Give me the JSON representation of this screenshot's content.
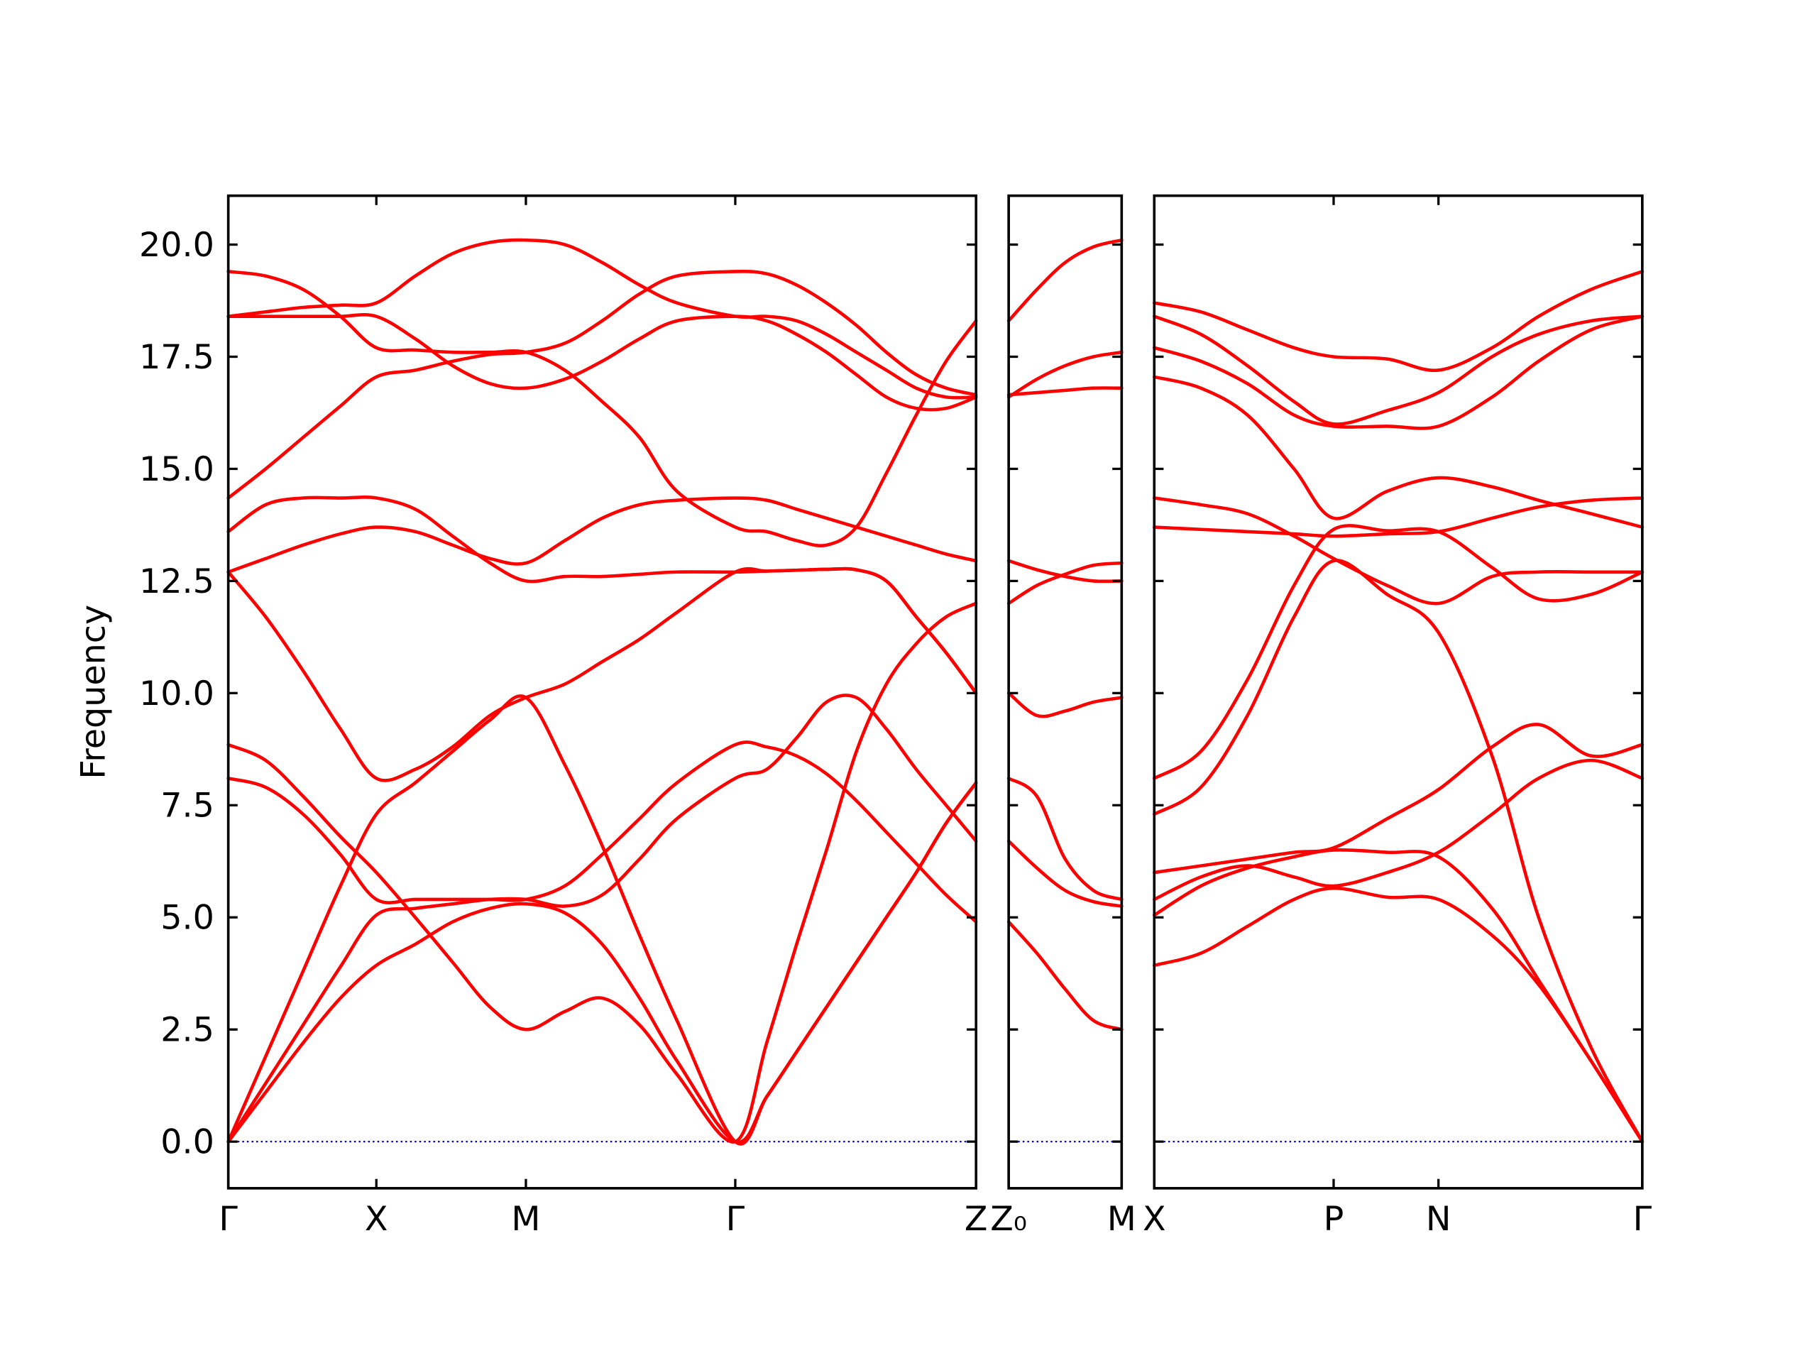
{
  "chart_data": [
    {
      "type": "line",
      "ylabel": "Frequency",
      "color": "#ff0000",
      "xlim": [
        0,
        5
      ],
      "ylim": [
        -1.04,
        21.09
      ],
      "xticks": [
        {
          "value": 0,
          "label": "Γ"
        },
        {
          "value": 0.99,
          "label": "X"
        },
        {
          "value": 1.99,
          "label": "M"
        },
        {
          "value": 3.39,
          "label": "Γ"
        },
        {
          "value": 5,
          "label": "Z"
        }
      ],
      "yticks": [
        {
          "value": 0,
          "label": "0.0"
        },
        2.5,
        {
          "value": 5,
          "label": "5.0"
        },
        7.5,
        {
          "value": 10,
          "label": "10.0"
        },
        12.5,
        {
          "value": 15,
          "label": "15.0"
        },
        17.5,
        {
          "value": 20,
          "label": "20.0"
        }
      ],
      "x": [
        0,
        0.25,
        0.5,
        0.75,
        0.99,
        1.25,
        1.5,
        1.75,
        1.99,
        2.25,
        2.5,
        2.75,
        3.0,
        3.39,
        3.6,
        3.8,
        4.0,
        4.2,
        4.4,
        4.6,
        4.8,
        5.0
      ],
      "series": [
        {
          "values": [
            0,
            1.1,
            2.2,
            3.2,
            3.93,
            4.4,
            4.9,
            5.2,
            5.3,
            5.1,
            4.4,
            3.2,
            1.8,
            0,
            1.0,
            2.0,
            3.0,
            4.0,
            5.0,
            6.0,
            7.1,
            8.0
          ]
        },
        {
          "values": [
            8.85,
            8.5,
            7.7,
            6.8,
            6.0,
            5.0,
            4.0,
            3.0,
            2.5,
            2.9,
            3.2,
            2.6,
            1.5,
            0,
            2.2,
            4.4,
            6.5,
            8.7,
            10.2,
            11.1,
            11.7,
            12.0
          ]
        },
        {
          "values": [
            8.1,
            7.9,
            7.3,
            6.4,
            5.4,
            5.4,
            5.4,
            5.4,
            5.4,
            5.7,
            6.4,
            7.2,
            8.0,
            8.85,
            8.8,
            8.6,
            8.2,
            7.6,
            6.9,
            6.2,
            5.5,
            4.9
          ]
        },
        {
          "values": [
            0,
            1.3,
            2.6,
            3.9,
            5.05,
            5.2,
            5.3,
            5.4,
            5.4,
            5.25,
            5.5,
            6.3,
            7.2,
            8.1,
            8.3,
            9.0,
            9.8,
            9.9,
            9.2,
            8.3,
            7.5,
            6.7
          ]
        },
        {
          "values": [
            0,
            1.9,
            3.8,
            5.7,
            7.3,
            8.0,
            8.7,
            9.4,
            9.9,
            8.4,
            6.6,
            4.6,
            2.7,
            0,
            1.0,
            2.0,
            3.0,
            4.0,
            5.0,
            6.0,
            7.1,
            8.0
          ]
        },
        {
          "values": [
            12.7,
            11.7,
            10.5,
            9.2,
            8.1,
            8.3,
            8.8,
            9.5,
            9.9,
            10.2,
            10.7,
            11.2,
            11.8,
            12.7,
            12.72,
            12.74,
            12.76,
            12.75,
            12.5,
            11.7,
            10.9,
            10.0
          ]
        },
        {
          "values": [
            12.7,
            13.0,
            13.3,
            13.55,
            13.7,
            13.6,
            13.3,
            13.0,
            12.9,
            13.4,
            13.9,
            14.2,
            14.3,
            14.35,
            14.3,
            14.1,
            13.9,
            13.7,
            13.5,
            13.3,
            13.1,
            12.95
          ]
        },
        {
          "values": [
            13.6,
            14.2,
            14.35,
            14.35,
            14.35,
            14.1,
            13.5,
            12.9,
            12.5,
            12.6,
            12.6,
            12.65,
            12.7,
            12.7,
            12.72,
            12.74,
            12.76,
            12.75,
            12.5,
            11.7,
            10.9,
            10.0
          ]
        },
        {
          "values": [
            14.35,
            15.0,
            15.7,
            16.4,
            17.05,
            17.2,
            17.4,
            17.55,
            17.6,
            17.8,
            18.3,
            18.9,
            19.3,
            19.4,
            19.35,
            19.1,
            18.7,
            18.2,
            17.6,
            17.1,
            16.8,
            16.65
          ]
        },
        {
          "values": [
            19.4,
            19.3,
            19.0,
            18.4,
            17.7,
            17.65,
            17.6,
            17.6,
            17.6,
            17.2,
            16.5,
            15.7,
            14.5,
            13.7,
            13.6,
            13.4,
            13.3,
            13.7,
            14.9,
            16.2,
            17.4,
            18.3
          ]
        },
        {
          "values": [
            18.4,
            18.4,
            18.4,
            18.4,
            18.4,
            17.9,
            17.3,
            16.9,
            16.8,
            17.0,
            17.4,
            17.9,
            18.3,
            18.4,
            18.3,
            18.0,
            17.6,
            17.1,
            16.6,
            16.35,
            16.35,
            16.6
          ]
        },
        {
          "values": [
            18.4,
            18.5,
            18.6,
            18.65,
            18.7,
            19.3,
            19.8,
            20.05,
            20.1,
            20.0,
            19.6,
            19.1,
            18.7,
            18.4,
            18.4,
            18.3,
            18.0,
            17.6,
            17.2,
            16.8,
            16.6,
            16.6
          ]
        }
      ]
    },
    {
      "type": "line",
      "color": "#ff0000",
      "xlim": [
        0,
        1
      ],
      "ylim": [
        -1.04,
        21.09
      ],
      "xticks": [
        {
          "value": 0,
          "label": "Z₀"
        },
        {
          "value": 1,
          "label": "M"
        }
      ],
      "yticks": [
        0,
        2.5,
        5,
        7.5,
        10,
        12.5,
        15,
        17.5,
        20
      ],
      "x": [
        0,
        0.25,
        0.5,
        0.75,
        1
      ],
      "series": [
        {
          "values": [
            18.3,
            19.0,
            19.6,
            19.95,
            20.1
          ]
        },
        {
          "values": [
            16.6,
            17.0,
            17.3,
            17.5,
            17.6
          ]
        },
        {
          "values": [
            16.65,
            16.7,
            16.75,
            16.8,
            16.8
          ]
        },
        {
          "values": [
            12.95,
            12.75,
            12.6,
            12.5,
            12.5
          ]
        },
        {
          "values": [
            12.0,
            12.4,
            12.65,
            12.85,
            12.9
          ]
        },
        {
          "values": [
            10.0,
            9.5,
            9.6,
            9.8,
            9.9
          ]
        },
        {
          "values": [
            8.1,
            7.7,
            6.3,
            5.6,
            5.4
          ]
        },
        {
          "values": [
            6.7,
            6.1,
            5.6,
            5.35,
            5.25
          ]
        },
        {
          "values": [
            4.9,
            4.2,
            3.4,
            2.7,
            2.5
          ]
        }
      ]
    },
    {
      "type": "line",
      "color": "#ff0000",
      "xlim": [
        0,
        4.19
      ],
      "ylim": [
        -1.04,
        21.09
      ],
      "xticks": [
        {
          "value": 0,
          "label": "X"
        },
        {
          "value": 1.54,
          "label": "P"
        },
        {
          "value": 2.44,
          "label": "N"
        },
        {
          "value": 4.19,
          "label": "Γ"
        }
      ],
      "yticks": [
        0,
        2.5,
        5,
        7.5,
        10,
        12.5,
        15,
        17.5,
        20
      ],
      "x": [
        0,
        0.4,
        0.8,
        1.2,
        1.54,
        2.0,
        2.44,
        2.9,
        3.3,
        3.75,
        4.19
      ],
      "series": [
        {
          "values": [
            18.7,
            18.5,
            18.1,
            17.7,
            17.5,
            17.45,
            17.2,
            17.7,
            18.4,
            19.0,
            19.4
          ]
        },
        {
          "values": [
            18.4,
            18.0,
            17.3,
            16.5,
            16.0,
            16.3,
            16.7,
            17.5,
            18.0,
            18.3,
            18.4
          ]
        },
        {
          "values": [
            17.7,
            17.4,
            16.9,
            16.2,
            15.95,
            15.95,
            15.95,
            16.6,
            17.4,
            18.1,
            18.4
          ]
        },
        {
          "values": [
            17.05,
            16.8,
            16.2,
            15.0,
            13.9,
            14.5,
            14.8,
            14.6,
            14.3,
            14.0,
            13.7
          ]
        },
        {
          "values": [
            14.35,
            14.2,
            14.0,
            13.5,
            13.0,
            12.4,
            12.0,
            12.6,
            12.7,
            12.7,
            12.7
          ]
        },
        {
          "values": [
            13.7,
            13.65,
            13.6,
            13.55,
            13.5,
            13.55,
            13.6,
            13.9,
            14.15,
            14.3,
            14.35
          ]
        },
        {
          "values": [
            8.1,
            8.7,
            10.3,
            12.4,
            13.65,
            13.62,
            13.6,
            12.8,
            12.1,
            12.2,
            12.7
          ]
        },
        {
          "values": [
            7.3,
            7.9,
            9.5,
            11.7,
            12.95,
            12.2,
            11.35,
            8.6,
            5.0,
            2.1,
            0
          ]
        },
        {
          "values": [
            6.0,
            6.15,
            6.3,
            6.45,
            6.55,
            7.2,
            7.85,
            8.8,
            9.3,
            8.6,
            8.85
          ]
        },
        {
          "values": [
            5.4,
            5.9,
            6.15,
            5.9,
            5.7,
            6.0,
            6.45,
            7.3,
            8.1,
            8.5,
            8.1
          ]
        },
        {
          "values": [
            5.05,
            5.7,
            6.1,
            6.35,
            6.5,
            6.45,
            6.35,
            5.2,
            3.6,
            1.8,
            0
          ]
        },
        {
          "values": [
            3.93,
            4.2,
            4.8,
            5.4,
            5.65,
            5.45,
            5.4,
            4.6,
            3.5,
            1.8,
            0
          ]
        }
      ]
    }
  ]
}
